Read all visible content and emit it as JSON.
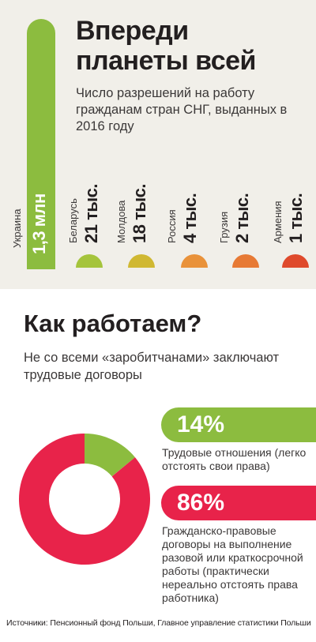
{
  "colors": {
    "green": "#8cbc3f",
    "red": "#e8234a",
    "semicircles": [
      "#a5c43c",
      "#d0b832",
      "#e9923a",
      "#e77a35",
      "#df4a2c"
    ]
  },
  "chart_data": [
    {
      "type": "bar",
      "title": "Впереди планеты всей",
      "subtitle": "Число разрешений на работу гражданам стран СНГ, выданных в 2016 году",
      "categories": [
        "Украина",
        "Беларусь",
        "Молдова",
        "Россия",
        "Грузия",
        "Армения"
      ],
      "values": [
        1300000,
        21000,
        18000,
        4000,
        2000,
        1000
      ],
      "value_labels": [
        "1,3 млн",
        "21 тыс.",
        "18 тыс.",
        "4 тыс.",
        "2 тыс.",
        "1 тыс."
      ]
    },
    {
      "type": "pie",
      "title": "Как работаем?",
      "subtitle": "Не со всеми «заробитчанами» заключают трудовые договоры",
      "values": [
        14,
        86
      ],
      "value_labels": [
        "14%",
        "86%"
      ],
      "labels": [
        "Трудовые отношения (легко отстоять свои права)",
        "Гражданско-правовые договоры на выполнение разовой или краткосрочной работы (практически нереально отстоять права работника)"
      ],
      "colors": [
        "#8cbc3f",
        "#e8234a"
      ]
    }
  ],
  "source": "Источники: Пенсионный фонд Польши, Главное управление статистики Польши"
}
